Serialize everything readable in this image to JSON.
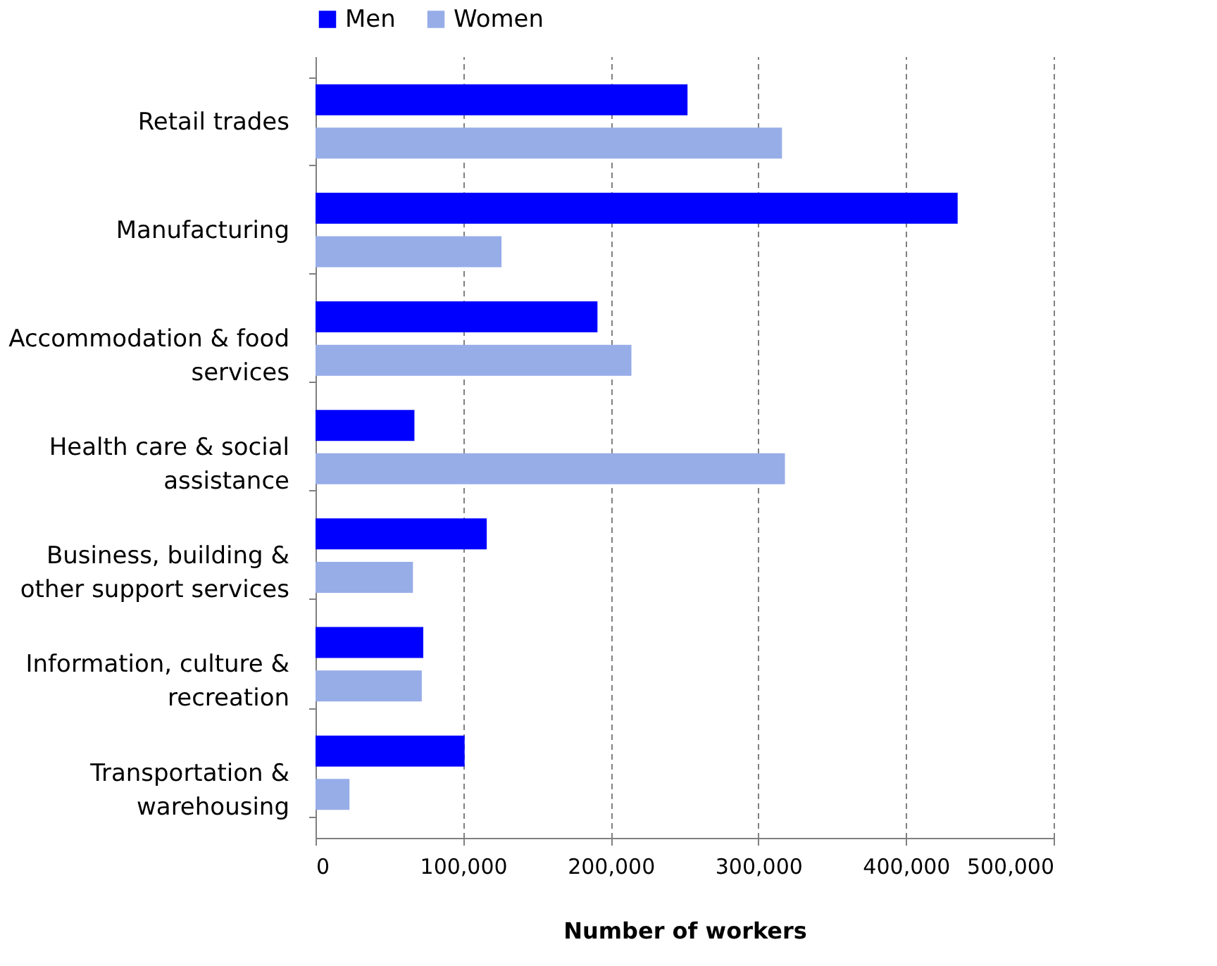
{
  "chart_data": {
    "type": "bar",
    "orientation": "horizontal",
    "xlabel": "Number of workers",
    "categories": [
      "Retail trades",
      "Manufacturing",
      "Accommodation & food services",
      "Health care & social assistance",
      "Business, building & other support services",
      "Information, culture & recreation",
      "Transportation & warehousing"
    ],
    "series": [
      {
        "name": "Men",
        "color": "#0000ff",
        "values": [
          252000,
          435000,
          191000,
          67000,
          116000,
          73000,
          101000
        ]
      },
      {
        "name": "Women",
        "color": "#97ade8",
        "values": [
          316000,
          126000,
          214000,
          318000,
          66000,
          72000,
          23000
        ]
      }
    ],
    "xlim": [
      0,
      500000
    ],
    "xticks": [
      0,
      {
        "value": 100000,
        "label": "100,000"
      },
      {
        "value": 200000,
        "label": "200,000"
      },
      {
        "value": 300000,
        "label": "300,000"
      },
      {
        "value": 400000,
        "label": "400,000"
      },
      {
        "value": 500000,
        "label": "500,000"
      }
    ],
    "grid": "x",
    "legend": "top"
  }
}
